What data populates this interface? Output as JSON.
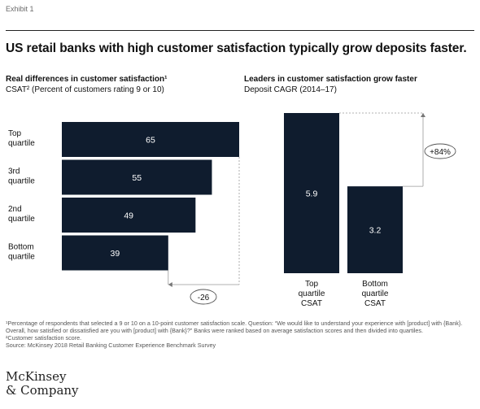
{
  "exhibit": "Exhibit 1",
  "title": "US retail banks with high customer satisfaction typically grow deposits faster.",
  "colors": {
    "bar": "#0f1c2e",
    "text": "#111111",
    "muted": "#555555"
  },
  "chart_data": [
    {
      "type": "bar",
      "orientation": "horizontal",
      "title": "Real differences in customer satisfaction¹",
      "subtitle": "CSAT² (Percent of customers rating 9 or 10)",
      "categories": [
        "Top quartile",
        "3rd quartile",
        "2nd quartile",
        "Bottom quartile"
      ],
      "category_lines": [
        [
          "Top",
          "quartile"
        ],
        [
          "3rd",
          "quartile"
        ],
        [
          "2nd",
          "quartile"
        ],
        [
          "Bottom",
          "quartile"
        ]
      ],
      "values": [
        65,
        55,
        49,
        39
      ],
      "data_labels": [
        "65",
        "55",
        "49",
        "39"
      ],
      "xlim": [
        0,
        65
      ],
      "annotation": "-26"
    },
    {
      "type": "bar",
      "orientation": "vertical",
      "title": "Leaders in customer satisfaction grow faster",
      "subtitle": "Deposit CAGR (2014–17)",
      "categories": [
        "Top quartile CSAT",
        "Bottom quartile CSAT"
      ],
      "category_lines": [
        [
          "Top",
          "quartile",
          "CSAT"
        ],
        [
          "Bottom",
          "quartile",
          "CSAT"
        ]
      ],
      "values": [
        5.9,
        3.2
      ],
      "data_labels": [
        "5.9",
        "3.2"
      ],
      "ylim": [
        0,
        5.9
      ],
      "annotation": "+84%"
    }
  ],
  "footnotes": [
    "¹Percentage of respondents that selected a 9 or 10 on a 10-point customer satisfaction scale. Question: “We would like to understand your experience with [product] with {Bank}. Overall, how satisfied or dissatisfied are you with [product] with {Bank}?” Banks were ranked based on average satisfaction scores and then divided into quartiles.",
    "²Customer satisfaction score.",
    "Source: McKinsey 2018 Retail Banking Customer Experience Benchmark Survey"
  ],
  "logo": [
    "McKinsey",
    "& Company"
  ]
}
